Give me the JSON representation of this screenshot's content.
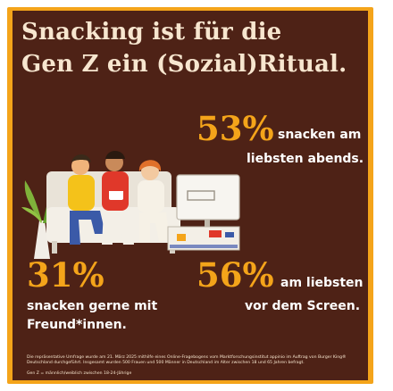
{
  "headline": {
    "line1": "Snacking ist für die",
    "line2": "Gen Z ein (Sozial)Ritual."
  },
  "stats": [
    {
      "value": "53%",
      "text_line1": "snacken am",
      "text_line2": "liebsten abends."
    },
    {
      "value": "31%",
      "text_line1": "snacken gerne mit",
      "text_line2": "Freund*innen."
    },
    {
      "value": "56%",
      "text_line1": "am liebsten",
      "text_line2": "vor dem Screen."
    }
  ],
  "footnote": {
    "survey_line1": "Die repräsentative Umfrage wurde am 21. März 2025 mithilfe eines Online-Fragebogens vom Marktforschungsinstitut appinio im Auftrag von Burger King®",
    "survey_line2": "Deutschland durchgeführt. Insgesamt wurden 500 Frauen und 500 Männer in Deutschland im Alter zwischen 18 und 65 Jahren befragt.",
    "genz_definition": "Gen Z = männlich/weiblich zwischen 18-24-Jährige"
  },
  "colors": {
    "background": "#4e2216",
    "accent": "#f4a41a",
    "text_light": "#f7e6cf"
  },
  "illustration": "friends-snacking-on-couch-watching-tv"
}
